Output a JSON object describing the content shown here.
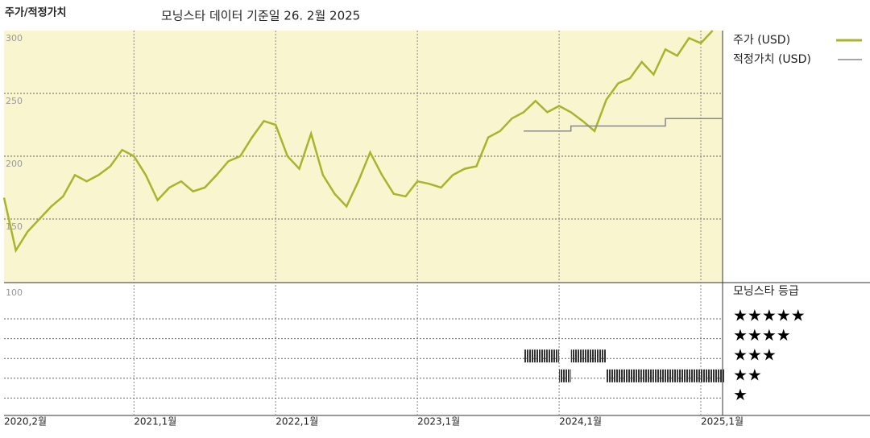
{
  "chart_data": {
    "type": "line",
    "title": "주가/적정가치",
    "subtitle": "모닝스타 데이터 기준일 26. 2월 2025",
    "x": [
      "2020-02",
      "2020-03",
      "2020-04",
      "2020-05",
      "2020-06",
      "2020-07",
      "2020-08",
      "2020-09",
      "2020-10",
      "2020-11",
      "2020-12",
      "2021-01",
      "2021-02",
      "2021-03",
      "2021-04",
      "2021-05",
      "2021-06",
      "2021-07",
      "2021-08",
      "2021-09",
      "2021-10",
      "2021-11",
      "2021-12",
      "2022-01",
      "2022-02",
      "2022-03",
      "2022-04",
      "2022-05",
      "2022-06",
      "2022-07",
      "2022-08",
      "2022-09",
      "2022-10",
      "2022-11",
      "2022-12",
      "2023-01",
      "2023-02",
      "2023-03",
      "2023-04",
      "2023-05",
      "2023-06",
      "2023-07",
      "2023-08",
      "2023-09",
      "2023-10",
      "2023-11",
      "2023-12",
      "2024-01",
      "2024-02",
      "2024-03",
      "2024-04",
      "2024-05",
      "2024-06",
      "2024-07",
      "2024-08",
      "2024-09",
      "2024-10",
      "2024-11",
      "2024-12",
      "2025-01",
      "2025-02"
    ],
    "series": [
      {
        "name": "주가 (USD)",
        "color": "#a9b32b",
        "values": [
          167,
          125,
          140,
          150,
          160,
          168,
          185,
          180,
          185,
          192,
          205,
          200,
          185,
          165,
          175,
          180,
          172,
          175,
          185,
          196,
          200,
          215,
          228,
          225,
          200,
          190,
          218,
          185,
          170,
          160,
          180,
          203,
          185,
          170,
          168,
          180,
          178,
          175,
          185,
          190,
          192,
          215,
          220,
          230,
          235,
          244,
          235,
          240,
          235,
          228,
          220,
          245,
          258,
          262,
          275,
          265,
          285,
          280,
          294,
          290,
          300
        ]
      },
      {
        "name": "적정가치 (USD)",
        "color": "#888888",
        "values": [
          null,
          null,
          null,
          null,
          null,
          null,
          null,
          null,
          null,
          null,
          null,
          null,
          null,
          null,
          null,
          null,
          null,
          null,
          null,
          null,
          null,
          null,
          null,
          null,
          null,
          null,
          null,
          null,
          null,
          null,
          null,
          null,
          null,
          null,
          null,
          null,
          null,
          null,
          null,
          null,
          null,
          null,
          null,
          null,
          220,
          220,
          220,
          220,
          224,
          224,
          224,
          224,
          224,
          224,
          224,
          224,
          230,
          230,
          230,
          230,
          230
        ]
      }
    ],
    "ylim": [
      100,
      300
    ],
    "yticks": [
      100,
      150,
      200,
      250,
      300
    ],
    "grid": true,
    "xticks": [
      {
        "value": "2020-02",
        "label": "2020,2월"
      },
      {
        "value": "2021-01",
        "label": "2021,1월"
      },
      {
        "value": "2022-01",
        "label": "2022,1월"
      },
      {
        "value": "2023-01",
        "label": "2023,1월"
      },
      {
        "value": "2024-01",
        "label": "2024,1월"
      },
      {
        "value": "2025-01",
        "label": "2025,1월"
      }
    ],
    "rating": {
      "title": "모닝스타 등급",
      "levels": [
        "★",
        "★★",
        "★★★",
        "★★★★",
        "★★★★★"
      ],
      "values": [
        null,
        null,
        null,
        null,
        null,
        null,
        null,
        null,
        null,
        null,
        null,
        null,
        null,
        null,
        null,
        null,
        null,
        null,
        null,
        null,
        null,
        null,
        null,
        null,
        null,
        null,
        null,
        null,
        null,
        null,
        null,
        null,
        null,
        null,
        null,
        null,
        null,
        null,
        null,
        null,
        null,
        null,
        null,
        null,
        3,
        3,
        3,
        2,
        3,
        3,
        3,
        2,
        2,
        2,
        2,
        2,
        2,
        2,
        2,
        2,
        2
      ]
    }
  }
}
